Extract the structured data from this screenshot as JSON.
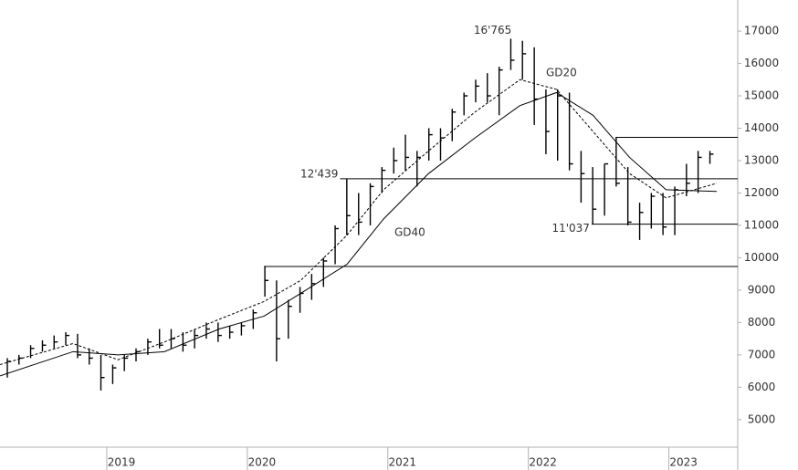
{
  "chart_data": {
    "type": "ohlc",
    "color": "#000000",
    "x": [
      2018.292,
      2018.375,
      2018.458,
      2018.542,
      2018.625,
      2018.708,
      2018.792,
      2018.875,
      2018.958,
      2019.042,
      2019.125,
      2019.208,
      2019.292,
      2019.375,
      2019.458,
      2019.542,
      2019.625,
      2019.708,
      2019.792,
      2019.875,
      2019.958,
      2020.042,
      2020.125,
      2020.208,
      2020.292,
      2020.375,
      2020.458,
      2020.542,
      2020.625,
      2020.708,
      2020.792,
      2020.875,
      2020.958,
      2021.042,
      2021.125,
      2021.208,
      2021.292,
      2021.375,
      2021.458,
      2021.542,
      2021.625,
      2021.708,
      2021.792,
      2021.875,
      2021.958,
      2022.042,
      2022.125,
      2022.208,
      2022.292,
      2022.375,
      2022.458,
      2022.542,
      2022.625,
      2022.708,
      2022.792,
      2022.875,
      2022.958,
      2023.042,
      2023.125,
      2023.208,
      2023.292
    ],
    "high": [
      6900,
      7000,
      7300,
      7450,
      7600,
      7700,
      7650,
      7200,
      7000,
      6700,
      7000,
      7200,
      7500,
      7800,
      7800,
      7700,
      7800,
      8000,
      8000,
      7900,
      8000,
      8400,
      9750,
      9300,
      8700,
      9100,
      9500,
      10000,
      11000,
      12439,
      12000,
      12300,
      12800,
      13400,
      13800,
      13300,
      14000,
      14000,
      14600,
      15100,
      15500,
      15700,
      15900,
      16765,
      16700,
      16500,
      15200,
      15200,
      15100,
      13300,
      12800,
      12900,
      13720,
      12800,
      11700,
      12000,
      12000,
      12200,
      12900,
      13300,
      13300
    ],
    "low": [
      6300,
      6700,
      6900,
      7100,
      7200,
      7300,
      6900,
      6700,
      5900,
      6100,
      6500,
      6800,
      7000,
      7200,
      7200,
      7100,
      7200,
      7500,
      7400,
      7500,
      7600,
      7800,
      8800,
      6800,
      7500,
      8300,
      8700,
      9100,
      9800,
      10700,
      10700,
      11000,
      12000,
      12600,
      12700,
      12200,
      13000,
      13000,
      13600,
      14400,
      14800,
      14800,
      14400,
      15800,
      15500,
      14100,
      13200,
      13000,
      12700,
      11700,
      11037,
      11300,
      12200,
      11000,
      10550,
      10900,
      10700,
      10700,
      11900,
      12000,
      12900
    ],
    "close": [
      6800,
      6900,
      7200,
      7300,
      7400,
      7600,
      7000,
      6900,
      6300,
      6600,
      6900,
      7100,
      7400,
      7300,
      7500,
      7300,
      7600,
      7800,
      7600,
      7700,
      7900,
      8300,
      9300,
      7500,
      8500,
      8900,
      9200,
      9900,
      10900,
      11300,
      11100,
      12200,
      12700,
      13000,
      13100,
      13100,
      13800,
      13700,
      14500,
      15000,
      15300,
      15000,
      15800,
      16100,
      16300,
      14900,
      13900,
      15000,
      12900,
      12600,
      11500,
      12900,
      12300,
      11100,
      11400,
      11900,
      10950,
      12100,
      12300,
      13100,
      13200
    ],
    "series": [
      {
        "name": "GD20",
        "style": "dashed",
        "x": [
          2018.24,
          2018.76,
          2019.08,
          2019.41,
          2019.8,
          2020.12,
          2020.38,
          2020.71,
          2020.97,
          2021.29,
          2021.62,
          2021.94,
          2022.2,
          2022.46,
          2022.72,
          2022.98,
          2023.34
        ],
        "values": [
          6700,
          7350,
          6850,
          7400,
          8100,
          8650,
          9300,
          10700,
          12100,
          13300,
          14500,
          15500,
          15200,
          13900,
          12600,
          11850,
          12300
        ]
      },
      {
        "name": "GD40",
        "style": "solid",
        "x": [
          2018.24,
          2018.76,
          2019.08,
          2019.41,
          2019.8,
          2020.12,
          2020.38,
          2020.71,
          2020.97,
          2021.29,
          2021.62,
          2021.94,
          2022.2,
          2022.46,
          2022.72,
          2022.98,
          2023.34
        ],
        "values": [
          6350,
          7100,
          7000,
          7100,
          7800,
          8200,
          8900,
          9800,
          11200,
          12600,
          13700,
          14700,
          15100,
          14400,
          13100,
          12100,
          12050
        ]
      }
    ],
    "levels": [
      {
        "value": 12439,
        "label": "12'439",
        "from": 2020.66
      },
      {
        "value": 11037,
        "label": "11'037",
        "from": 2022.45
      },
      {
        "value": 13720,
        "from": 2022.62
      },
      {
        "value": 9730,
        "from": 2020.12
      }
    ],
    "peak": {
      "value": 16765,
      "label": "16'765",
      "x": 2021.876
    },
    "xlim": [
      2018.24,
      2023.49
    ],
    "ylim": [
      4150,
      17960
    ],
    "xticks": [
      2019,
      2020,
      2021,
      2022,
      2023
    ],
    "yticks": [
      5000,
      6000,
      7000,
      8000,
      9000,
      10000,
      11000,
      12000,
      13000,
      14000,
      15000,
      16000,
      17000
    ]
  }
}
